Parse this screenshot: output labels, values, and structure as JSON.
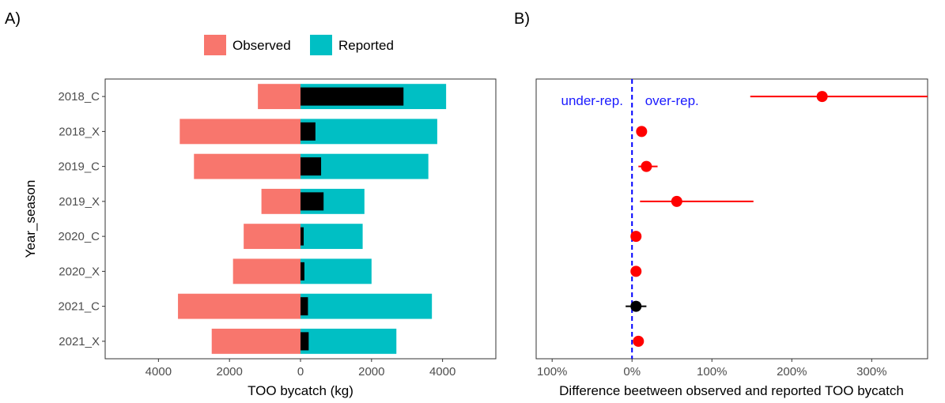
{
  "colors": {
    "observed": "#F8766D",
    "reported": "#00BFC4",
    "difference": "#000000",
    "flagged": "#FF0000",
    "ok": "#000000",
    "reference_line": "#0000FF",
    "annotation": "#1A1AFF"
  },
  "chart_data": [
    {
      "type": "bar",
      "orientation": "horizontal",
      "panel_label": "A)",
      "xlabel": "TOO bycatch (kg)",
      "ylabel": "Year_season",
      "xlim": [
        -5500,
        5500
      ],
      "xticks": [
        -4000,
        -2000,
        0,
        2000,
        4000
      ],
      "xtick_labels": [
        "4000",
        "2000",
        "0",
        "2000",
        "4000"
      ],
      "grid": false,
      "legend": {
        "position": "top",
        "entries": [
          "Observed",
          "Reported"
        ]
      },
      "categories": [
        "2018_C",
        "2018_X",
        "2019_C",
        "2019_X",
        "2020_C",
        "2020_X",
        "2021_C",
        "2021_X"
      ],
      "series": [
        {
          "name": "Observed",
          "direction": "left",
          "values": [
            1200,
            3400,
            3000,
            1100,
            1600,
            1900,
            3450,
            2500
          ]
        },
        {
          "name": "Reported",
          "direction": "right",
          "values": [
            4100,
            3850,
            3600,
            1800,
            1750,
            2000,
            3700,
            2700
          ]
        },
        {
          "role": "difference",
          "direction": "right",
          "values": [
            2900,
            420,
            580,
            650,
            90,
            110,
            210,
            230
          ]
        }
      ]
    },
    {
      "type": "scatter",
      "subtype": "point-range",
      "panel_label": "B)",
      "xlabel": "Difference beetween observed and reported TOO bycatch",
      "ylabel": "",
      "xlim": [
        -1.2,
        3.7
      ],
      "xticks": [
        -1,
        0,
        1,
        2,
        3
      ],
      "xtick_labels": [
        "100%",
        "0%",
        "100%",
        "200%",
        "300%"
      ],
      "grid": false,
      "reference_line": {
        "x": 0,
        "style": "dashed"
      },
      "annotations": [
        {
          "text": "under-rep.",
          "x": -0.5
        },
        {
          "text": "over-rep.",
          "x": 0.5
        }
      ],
      "categories": [
        "2018_C",
        "2018_X",
        "2019_C",
        "2019_X",
        "2020_C",
        "2020_X",
        "2021_C",
        "2021_X"
      ],
      "points": [
        {
          "y": "2018_C",
          "x": 2.38,
          "lo": 1.48,
          "hi": 3.7,
          "flag": true
        },
        {
          "y": "2018_X",
          "x": 0.12,
          "lo": 0.08,
          "hi": 0.16,
          "flag": true
        },
        {
          "y": "2019_C",
          "x": 0.18,
          "lo": 0.08,
          "hi": 0.32,
          "flag": true
        },
        {
          "y": "2019_X",
          "x": 0.56,
          "lo": 0.1,
          "hi": 1.52,
          "flag": true
        },
        {
          "y": "2020_C",
          "x": 0.05,
          "lo": 0.02,
          "hi": 0.08,
          "flag": true
        },
        {
          "y": "2020_X",
          "x": 0.05,
          "lo": 0.02,
          "hi": 0.08,
          "flag": true
        },
        {
          "y": "2021_C",
          "x": 0.05,
          "lo": -0.08,
          "hi": 0.18,
          "flag": false
        },
        {
          "y": "2021_X",
          "x": 0.08,
          "lo": 0.05,
          "hi": 0.11,
          "flag": true
        }
      ]
    }
  ]
}
